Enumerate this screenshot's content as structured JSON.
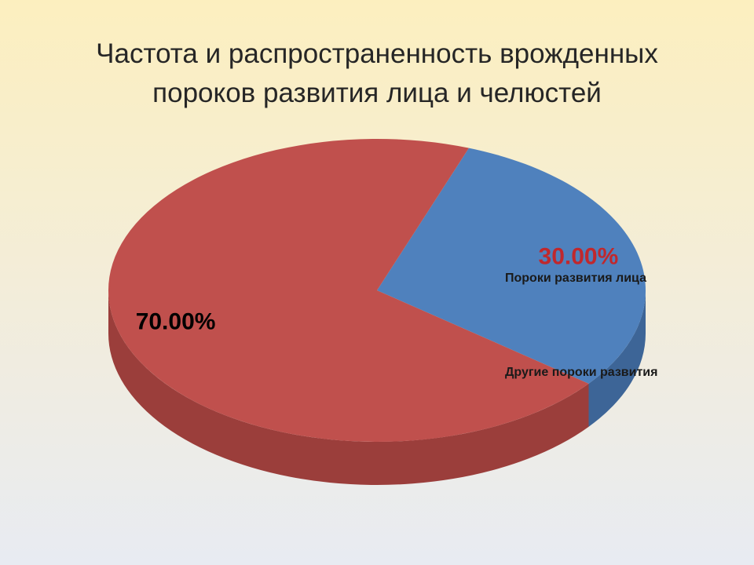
{
  "chart_data": {
    "type": "pie",
    "title": "Частота и распространенность врожденных пороков развития лица и челюстей",
    "categories": [
      "Пороки развития лица",
      "Другие пороки развития"
    ],
    "values": [
      30,
      70
    ],
    "value_labels": [
      "30.00%",
      "70.00%"
    ],
    "colors": [
      "#4f81bd",
      "#c0504d"
    ],
    "side_colors": [
      "#3d6597",
      "#9b3e3b"
    ],
    "value_label_colors": [
      "#c0282d",
      "#000000"
    ],
    "legend": "right"
  }
}
